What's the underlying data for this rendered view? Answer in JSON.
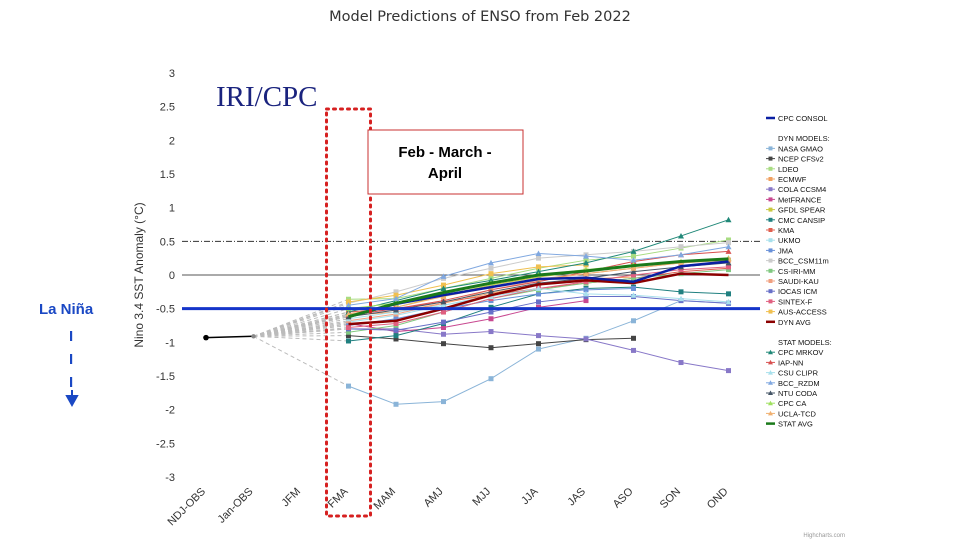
{
  "title": "Model Predictions of ENSO from Feb 2022",
  "watermark": "IRI/CPC",
  "season_box_label_line1": "Feb - March -",
  "season_box_label_line2": "April",
  "la_nina_label": "La Niña",
  "la_nina_dash": "I",
  "credit": "Highcharts.com",
  "legend_headers": {
    "dyn": "DYN MODELS:",
    "stat": "STAT MODELS:"
  },
  "colors": {
    "consol": "#0a1fa3",
    "dyn_avg": "#8b0000",
    "stat_avg": "#1a7a1a",
    "la_nina": "#1534c9",
    "box_red": "#d62020"
  },
  "chart_data": {
    "type": "line",
    "title": "Model Predictions of ENSO from Feb 2022",
    "ylabel": "Nino 3.4 SST Anomaly (°C)",
    "xlabel": "",
    "categories": [
      "NDJ-OBS",
      "Jan-OBS",
      "JFM",
      "FMA",
      "MAM",
      "AMJ",
      "MJJ",
      "JJA",
      "JAS",
      "ASO",
      "SON",
      "OND"
    ],
    "ylim": [
      -3,
      3
    ],
    "yticks": [
      "3",
      "2.5",
      "2",
      "1.5",
      "1",
      "0.5",
      "0",
      "-0.5",
      "-1",
      "-1.5",
      "-2",
      "-2.5",
      "-3"
    ],
    "reference_lines": {
      "la_nina_threshold": -0.5,
      "el_nino_threshold": 0.5,
      "zero": 0
    },
    "observed": [
      -0.93,
      -0.91
    ],
    "series": [
      {
        "name": "CPC CONSOL",
        "group": "consol",
        "color": "#0a1fa3",
        "marker": "none",
        "width": 2.5,
        "values": [
          null,
          null,
          null,
          -0.62,
          -0.43,
          -0.3,
          -0.18,
          -0.06,
          -0.04,
          -0.1,
          0.13,
          0.2
        ]
      },
      {
        "name": "NASA GMAO",
        "group": "dyn",
        "color": "#8ab4d8",
        "marker": "square",
        "width": 1,
        "values": [
          null,
          null,
          null,
          -1.65,
          -1.92,
          -1.88,
          -1.54,
          -1.1,
          -0.94,
          -0.68,
          -0.38,
          -0.42
        ]
      },
      {
        "name": "NCEP CFSv2",
        "group": "dyn",
        "color": "#444444",
        "marker": "square",
        "width": 1,
        "values": [
          null,
          null,
          null,
          -0.9,
          -0.95,
          -1.02,
          -1.08,
          -1.02,
          -0.96,
          -0.94,
          null,
          null
        ]
      },
      {
        "name": "LDEO",
        "group": "dyn",
        "color": "#a8dc82",
        "marker": "square",
        "width": 1,
        "values": [
          null,
          null,
          null,
          -0.36,
          -0.35,
          -0.2,
          -0.05,
          0.1,
          0.22,
          0.28,
          0.4,
          0.52
        ]
      },
      {
        "name": "ECMWF",
        "group": "dyn",
        "color": "#f0a060",
        "marker": "square",
        "width": 1,
        "values": [
          null,
          null,
          null,
          -0.6,
          -0.55,
          -0.42,
          -0.27,
          -0.14,
          -0.06,
          -0.03,
          null,
          null
        ]
      },
      {
        "name": "COLA CCSM4",
        "group": "dyn",
        "color": "#8878c8",
        "marker": "square",
        "width": 1,
        "values": [
          null,
          null,
          null,
          -0.8,
          -0.8,
          -0.88,
          -0.84,
          -0.9,
          -0.95,
          -1.12,
          -1.3,
          -1.42
        ]
      },
      {
        "name": "MetFRANCE",
        "group": "dyn",
        "color": "#c84890",
        "marker": "square",
        "width": 1,
        "values": [
          null,
          null,
          null,
          -0.72,
          -0.84,
          -0.78,
          -0.65,
          -0.48,
          -0.38,
          null,
          null,
          null
        ]
      },
      {
        "name": "GFDL SPEAR",
        "group": "dyn",
        "color": "#c8c840",
        "marker": "square",
        "width": 1,
        "values": [
          null,
          null,
          null,
          -0.58,
          -0.48,
          -0.3,
          -0.15,
          -0.03,
          0.06,
          0.14,
          0.18,
          0.22
        ]
      },
      {
        "name": "CMC CANSIP",
        "group": "dyn",
        "color": "#208080",
        "marker": "square",
        "width": 1,
        "values": [
          null,
          null,
          null,
          -0.98,
          -0.9,
          -0.72,
          -0.48,
          -0.28,
          -0.2,
          -0.18,
          -0.25,
          -0.28
        ]
      },
      {
        "name": "KMA",
        "group": "dyn",
        "color": "#e06050",
        "marker": "square",
        "width": 1,
        "values": [
          null,
          null,
          null,
          -0.55,
          -0.5,
          -0.4,
          -0.3,
          -0.2,
          -0.12,
          -0.05,
          0.05,
          0.1
        ]
      },
      {
        "name": "UKMO",
        "group": "dyn",
        "color": "#a8e0ec",
        "marker": "square",
        "width": 1,
        "values": [
          null,
          null,
          null,
          -0.7,
          -0.6,
          -0.45,
          -0.3,
          null,
          null,
          null,
          null,
          null
        ]
      },
      {
        "name": "JMA",
        "group": "dyn",
        "color": "#6890d8",
        "marker": "square",
        "width": 1,
        "values": [
          null,
          null,
          null,
          -0.75,
          -0.65,
          -0.5,
          -0.38,
          -0.28,
          -0.22,
          -0.2,
          null,
          null
        ]
      },
      {
        "name": "BCC_CSM11m",
        "group": "dyn",
        "color": "#cccccc",
        "marker": "square",
        "width": 1,
        "values": [
          null,
          null,
          null,
          -0.42,
          -0.25,
          -0.05,
          0.1,
          0.25,
          0.3,
          0.35,
          0.42,
          0.48
        ]
      },
      {
        "name": "CS-IRI-MM",
        "group": "dyn",
        "color": "#80c880",
        "marker": "square",
        "width": 1,
        "values": [
          null,
          null,
          null,
          -0.85,
          -0.75,
          -0.55,
          -0.35,
          -0.22,
          -0.12,
          -0.05,
          0.02,
          0.08
        ]
      },
      {
        "name": "SAUDI-KAU",
        "group": "dyn",
        "color": "#f0a080",
        "marker": "square",
        "width": 1,
        "values": [
          null,
          null,
          null,
          -0.68,
          -0.58,
          -0.42,
          -0.22,
          -0.08,
          0.02,
          0.1,
          0.18,
          0.22
        ]
      },
      {
        "name": "IOCAS ICM",
        "group": "dyn",
        "color": "#6870c8",
        "marker": "square",
        "width": 1,
        "values": [
          null,
          null,
          null,
          -0.8,
          -0.82,
          -0.7,
          -0.55,
          -0.4,
          -0.32,
          -0.32,
          -0.38,
          -0.42
        ]
      },
      {
        "name": "SINTEX-F",
        "group": "dyn",
        "color": "#e06080",
        "marker": "square",
        "width": 1,
        "values": [
          null,
          null,
          null,
          -0.78,
          -0.72,
          -0.55,
          -0.35,
          -0.2,
          -0.1,
          0.0,
          0.08,
          0.12
        ]
      },
      {
        "name": "AUS-ACCESS",
        "group": "dyn",
        "color": "#f0c050",
        "marker": "square",
        "width": 1,
        "values": [
          null,
          null,
          null,
          -0.4,
          -0.3,
          -0.15,
          0.02,
          0.12,
          0.15,
          null,
          null,
          null
        ]
      },
      {
        "name": "DYN AVG",
        "group": "dyn",
        "color": "#8b0000",
        "marker": "none",
        "width": 2.5,
        "values": [
          null,
          null,
          null,
          -0.73,
          -0.68,
          -0.5,
          -0.3,
          -0.14,
          -0.08,
          -0.12,
          0.02,
          0.0
        ]
      },
      {
        "name": "CPC MRKOV",
        "group": "stat",
        "color": "#208878",
        "marker": "triangle",
        "width": 1,
        "values": [
          null,
          null,
          null,
          -0.55,
          -0.38,
          -0.2,
          -0.08,
          0.05,
          0.18,
          0.35,
          0.58,
          0.82
        ]
      },
      {
        "name": "IAP-NN",
        "group": "stat",
        "color": "#d85050",
        "marker": "triangle",
        "width": 1,
        "values": [
          null,
          null,
          null,
          -0.6,
          -0.5,
          -0.38,
          -0.22,
          -0.1,
          0.05,
          0.2,
          0.3,
          0.35
        ]
      },
      {
        "name": "CSU CLIPR",
        "group": "stat",
        "color": "#a8e0ec",
        "marker": "triangle",
        "width": 1,
        "values": [
          null,
          null,
          null,
          -0.65,
          -0.55,
          -0.45,
          -0.32,
          -0.2,
          -0.28,
          -0.3,
          -0.35,
          -0.4
        ]
      },
      {
        "name": "BCC_RZDM",
        "group": "stat",
        "color": "#80a8e0",
        "marker": "triangle",
        "width": 1,
        "values": [
          null,
          null,
          null,
          -0.45,
          -0.35,
          -0.02,
          0.18,
          0.32,
          0.28,
          0.22,
          0.3,
          0.42
        ]
      },
      {
        "name": "NTU CODA",
        "group": "stat",
        "color": "#445566",
        "marker": "triangle",
        "width": 1,
        "values": [
          null,
          null,
          null,
          -0.62,
          -0.52,
          -0.4,
          -0.25,
          -0.12,
          -0.05,
          0.05,
          0.12,
          0.18
        ]
      },
      {
        "name": "CPC CA",
        "group": "stat",
        "color": "#a0e060",
        "marker": "triangle",
        "width": 1,
        "values": [
          null,
          null,
          null,
          -0.5,
          -0.42,
          -0.28,
          -0.12,
          0.0,
          0.08,
          0.15,
          0.2,
          0.25
        ]
      },
      {
        "name": "UCLA-TCD",
        "group": "stat",
        "color": "#f0b070",
        "marker": "triangle",
        "width": 1,
        "values": [
          null,
          null,
          null,
          -0.58,
          -0.48,
          -0.32,
          -0.18,
          -0.06,
          0.02,
          0.1,
          0.18,
          0.24
        ]
      },
      {
        "name": "STAT AVG",
        "group": "stat",
        "color": "#1a7a1a",
        "marker": "none",
        "width": 3,
        "values": [
          null,
          null,
          null,
          -0.62,
          -0.42,
          -0.26,
          -0.12,
          0.0,
          0.06,
          0.14,
          0.2,
          0.24
        ]
      }
    ],
    "legend_order": [
      "CPC CONSOL",
      "DYN MODELS:",
      "NASA GMAO",
      "NCEP CFSv2",
      "LDEO",
      "ECMWF",
      "COLA CCSM4",
      "MetFRANCE",
      "GFDL SPEAR",
      "CMC CANSIP",
      "KMA",
      "UKMO",
      "JMA",
      "BCC_CSM11m",
      "CS-IRI-MM",
      "SAUDI-KAU",
      "IOCAS ICM",
      "SINTEX-F",
      "AUS-ACCESS",
      "DYN AVG",
      "STAT MODELS:",
      "CPC MRKOV",
      "IAP-NN",
      "CSU CLIPR",
      "BCC_RZDM",
      "NTU CODA",
      "CPC CA",
      "UCLA-TCD",
      "STAT AVG"
    ],
    "legend_placement": "right",
    "grid": false
  }
}
